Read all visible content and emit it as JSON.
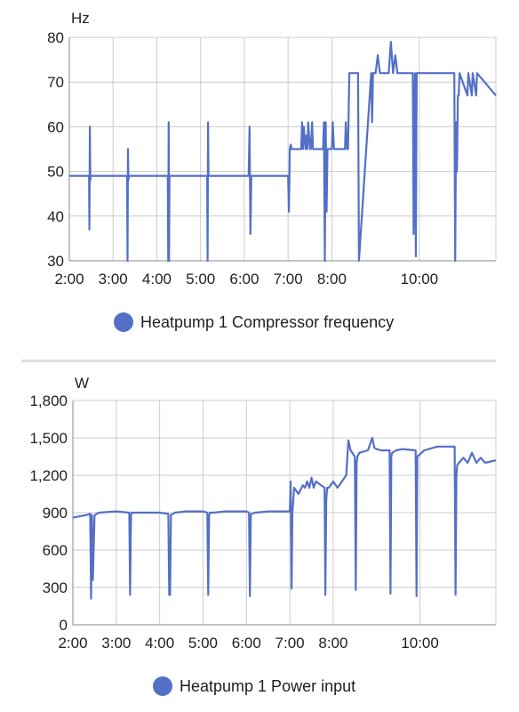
{
  "colors": {
    "series": "#5470c6",
    "grid": "#cccccc",
    "divider": "#dddddd"
  },
  "chart_data": [
    {
      "type": "line",
      "unit_label": "Hz",
      "ylim": [
        30,
        80
      ],
      "yticks": [
        30,
        40,
        50,
        60,
        70,
        80
      ],
      "ytick_labels": [
        "30",
        "40",
        "50",
        "60",
        "70",
        "80"
      ],
      "xlim": [
        2.0,
        11.75
      ],
      "xticks": [
        2,
        3,
        4,
        5,
        6,
        7,
        8,
        10
      ],
      "xtick_labels": [
        "2:00",
        "3:00",
        "4:00",
        "5:00",
        "6:00",
        "7:00",
        "8:00",
        "10:00"
      ],
      "grid": true,
      "legend_position": "bottom",
      "series": [
        {
          "name": "Heatpump 1 Compressor frequency",
          "x": [
            2.0,
            2.45,
            2.46,
            2.47,
            2.48,
            2.49,
            2.5,
            3.32,
            3.33,
            3.34,
            3.35,
            3.36,
            4.25,
            4.26,
            4.27,
            4.28,
            4.29,
            4.3,
            5.15,
            5.16,
            5.17,
            5.18,
            5.19,
            6.1,
            6.12,
            6.14,
            6.16,
            6.18,
            7.0,
            7.02,
            7.04,
            7.06,
            7.08,
            7.1,
            7.3,
            7.32,
            7.34,
            7.36,
            7.4,
            7.42,
            7.44,
            7.46,
            7.5,
            7.52,
            7.55,
            7.57,
            7.8,
            7.82,
            7.84,
            7.86,
            7.88,
            7.9,
            8.0,
            8.02,
            8.05,
            8.07,
            8.3,
            8.32,
            8.35,
            8.37,
            8.4,
            8.6,
            8.62,
            8.9,
            8.92,
            8.94,
            8.96,
            9.0,
            9.05,
            9.1,
            9.3,
            9.35,
            9.4,
            9.45,
            9.5,
            9.52,
            9.85,
            9.87,
            9.9,
            9.92,
            9.94,
            10.8,
            10.82,
            10.84,
            10.86,
            10.88,
            10.9,
            10.92,
            11.1,
            11.12,
            11.2,
            11.22,
            11.3,
            11.32,
            11.75
          ],
          "y": [
            49,
            49,
            37,
            60,
            48,
            49,
            49,
            49,
            30,
            55,
            48,
            49,
            49,
            30,
            61,
            30,
            49,
            49,
            49,
            30,
            61,
            49,
            49,
            49,
            60,
            36,
            49,
            49,
            49,
            41,
            55,
            56,
            55,
            55,
            55,
            61,
            55,
            60,
            55,
            58,
            55,
            61,
            55,
            55,
            61,
            55,
            55,
            61,
            30,
            61,
            41,
            55,
            55,
            61,
            55,
            55,
            55,
            61,
            55,
            55,
            72,
            72,
            30,
            72,
            61,
            72,
            72,
            72,
            76,
            72,
            72,
            79,
            72,
            76,
            72,
            72,
            72,
            36,
            72,
            31,
            72,
            72,
            30,
            61,
            50,
            67,
            67,
            72,
            67,
            72,
            67,
            72,
            67,
            72,
            67
          ]
        }
      ]
    },
    {
      "type": "line",
      "unit_label": "W",
      "ylim": [
        0,
        1800
      ],
      "yticks": [
        0,
        300,
        600,
        900,
        1200,
        1500,
        1800
      ],
      "ytick_labels": [
        "0",
        "300",
        "600",
        "900",
        "1,200",
        "1,500",
        "1,800"
      ],
      "xlim": [
        2.0,
        11.75
      ],
      "xticks": [
        2,
        3,
        4,
        5,
        6,
        7,
        8,
        10
      ],
      "xtick_labels": [
        "2:00",
        "3:00",
        "4:00",
        "5:00",
        "6:00",
        "7:00",
        "8:00",
        "10:00"
      ],
      "grid": true,
      "legend_position": "bottom",
      "series": [
        {
          "name": "Heatpump 1 Power input",
          "x": [
            2.0,
            2.3,
            2.4,
            2.42,
            2.44,
            2.46,
            2.5,
            2.6,
            3.0,
            3.3,
            3.32,
            3.34,
            3.36,
            3.45,
            3.6,
            4.0,
            4.2,
            4.22,
            4.24,
            4.26,
            4.35,
            4.6,
            5.0,
            5.1,
            5.12,
            5.14,
            5.16,
            5.25,
            5.5,
            6.0,
            6.06,
            6.08,
            6.1,
            6.12,
            6.2,
            6.5,
            7.0,
            7.02,
            7.04,
            7.06,
            7.08,
            7.1,
            7.2,
            7.3,
            7.35,
            7.4,
            7.45,
            7.5,
            7.55,
            7.6,
            7.8,
            7.82,
            7.84,
            7.86,
            7.9,
            8.0,
            8.1,
            8.2,
            8.3,
            8.35,
            8.4,
            8.5,
            8.52,
            8.54,
            8.56,
            8.6,
            8.8,
            8.9,
            8.95,
            9.0,
            9.1,
            9.3,
            9.32,
            9.34,
            9.36,
            9.45,
            9.6,
            9.9,
            9.92,
            9.94,
            10.1,
            10.4,
            10.8,
            10.82,
            10.84,
            10.86,
            10.9,
            11.0,
            11.1,
            11.2,
            11.3,
            11.4,
            11.5,
            11.75
          ],
          "y": [
            860,
            880,
            890,
            210,
            880,
            360,
            880,
            900,
            910,
            900,
            240,
            880,
            900,
            900,
            900,
            900,
            890,
            240,
            240,
            880,
            900,
            910,
            910,
            900,
            240,
            880,
            900,
            900,
            910,
            910,
            900,
            230,
            880,
            890,
            900,
            910,
            910,
            1150,
            290,
            900,
            1000,
            1100,
            1050,
            1120,
            1100,
            1150,
            1100,
            1180,
            1100,
            1150,
            1100,
            240,
            1000,
            1100,
            1100,
            1150,
            1100,
            1150,
            1200,
            1480,
            1400,
            1350,
            280,
            1300,
            1350,
            1380,
            1400,
            1500,
            1420,
            1410,
            1400,
            1400,
            250,
            1350,
            1380,
            1400,
            1410,
            1400,
            230,
            1350,
            1400,
            1430,
            1430,
            240,
            1200,
            1280,
            1300,
            1340,
            1300,
            1380,
            1300,
            1340,
            1300,
            1320
          ]
        }
      ]
    }
  ]
}
